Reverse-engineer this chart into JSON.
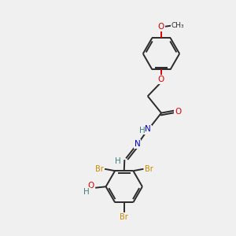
{
  "background_color": "#f0f0f0",
  "bond_color": "#2a2a2a",
  "atom_colors": {
    "O": "#e00000",
    "N": "#0000cc",
    "Br": "#cc8800",
    "H": "#408080",
    "C": "#2a2a2a"
  }
}
